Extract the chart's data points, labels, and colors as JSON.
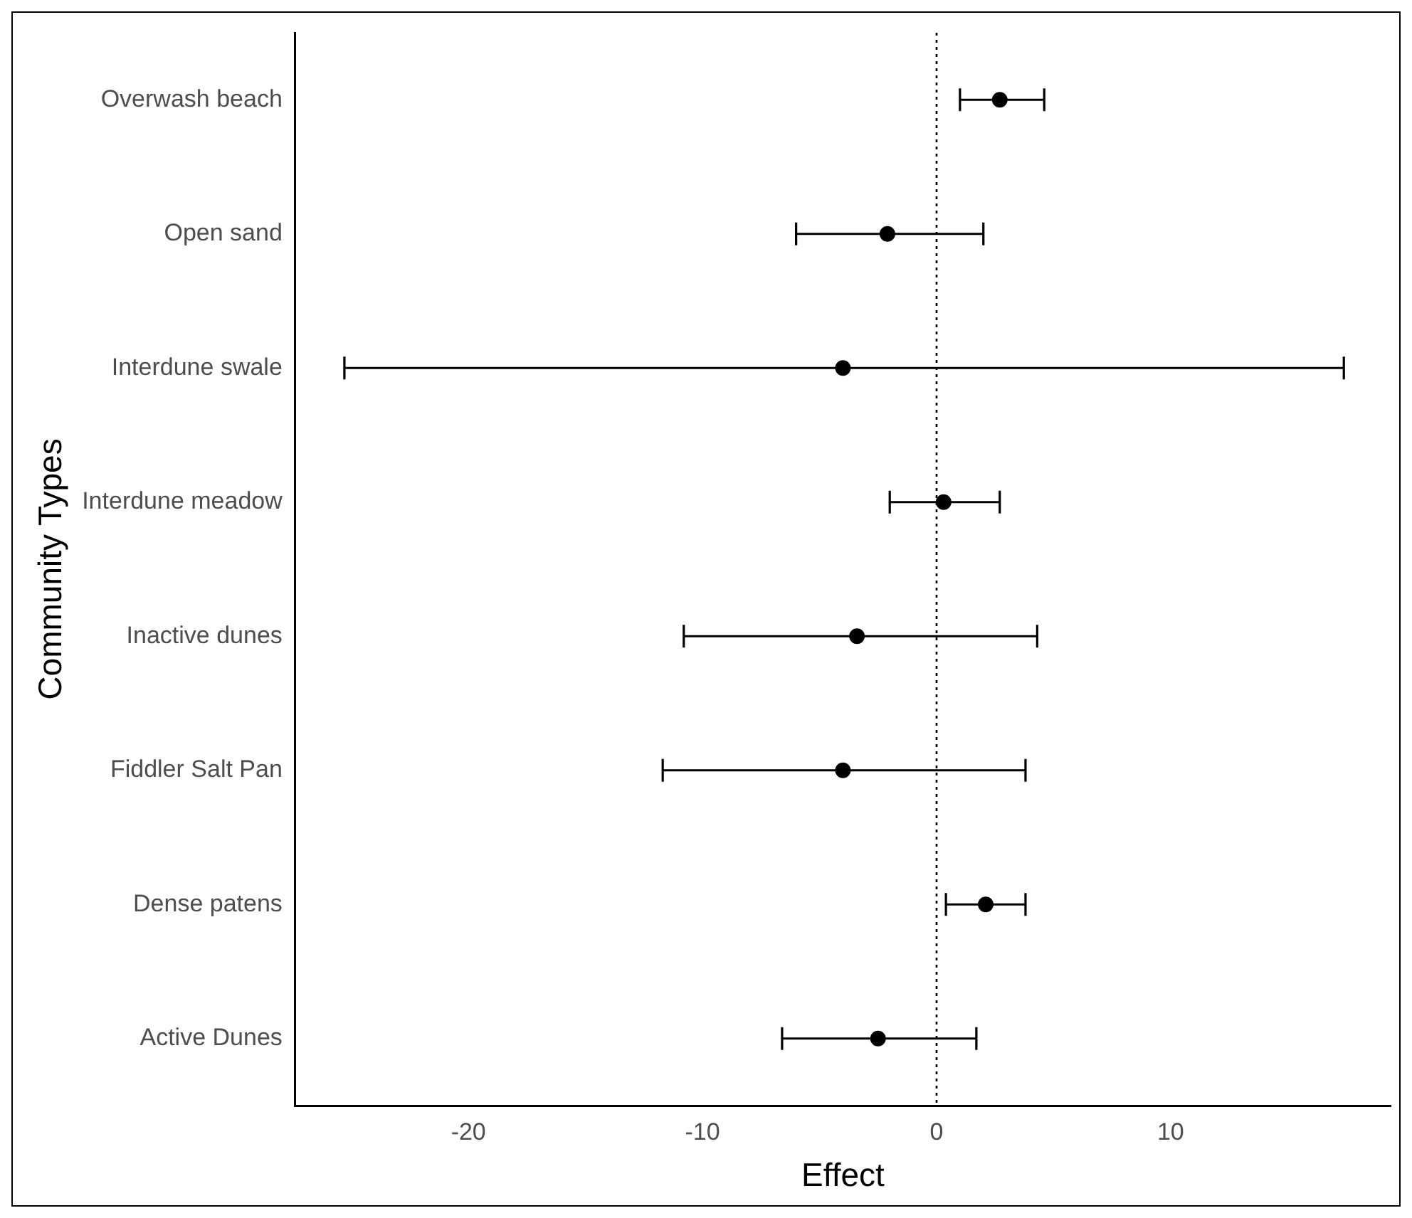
{
  "chart_data": {
    "type": "scatter",
    "orientation": "horizontal",
    "xlabel": "Effect",
    "ylabel": "Community Types",
    "categories": [
      "Overwash beach",
      "Open sand",
      "Interdune swale",
      "Interdune meadow",
      "Inactive dunes",
      "Fiddler Salt Pan",
      "Dense patens",
      "Active Dunes"
    ],
    "values": [
      2.7,
      -2.1,
      -4.0,
      0.3,
      -3.4,
      -4.0,
      2.1,
      -2.5
    ],
    "errors": [
      [
        1.0,
        4.6
      ],
      [
        -6.0,
        2.0
      ],
      [
        -25.3,
        17.4
      ],
      [
        -2.0,
        2.7
      ],
      [
        -10.8,
        4.3
      ],
      [
        -11.7,
        3.8
      ],
      [
        0.4,
        3.8
      ],
      [
        -6.6,
        1.7
      ]
    ],
    "color": "#000000",
    "marker": "circle",
    "grid": false,
    "legend": false,
    "xlim": [
      -27.4,
      19.4
    ],
    "xticks": [
      -20,
      -10,
      0,
      10
    ],
    "ref_lines": [
      {
        "axis": "x",
        "value": 0,
        "line_style": "dotted",
        "color": "#000000"
      }
    ]
  }
}
